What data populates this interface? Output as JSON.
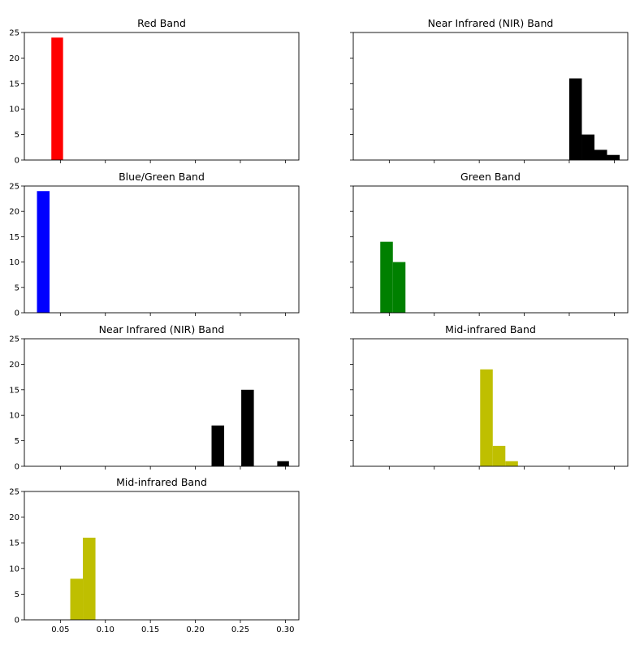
{
  "figure": {
    "shared_x": {
      "lim": [
        0.01,
        0.315
      ],
      "ticks": [
        0.05,
        0.1,
        0.15,
        0.2,
        0.25,
        0.3
      ],
      "tick_labels": [
        "0.05",
        "0.10",
        "0.15",
        "0.20",
        "0.25",
        "0.30"
      ]
    },
    "shared_y": {
      "lim": [
        0,
        25
      ],
      "ticks": [
        0,
        5,
        10,
        15,
        20,
        25
      ],
      "tick_labels": [
        "0",
        "5",
        "10",
        "15",
        "20",
        "25"
      ]
    }
  },
  "chart_data": [
    {
      "type": "bar",
      "title": "Red Band",
      "color": "#ff0000",
      "grid": false,
      "bins": [
        {
          "x0": 0.04,
          "x1": 0.053,
          "count": 24
        }
      ]
    },
    {
      "type": "bar",
      "title": "Near Infrared (NIR) Band",
      "color": "#000000",
      "grid": false,
      "bins": [
        {
          "x0": 0.25,
          "x1": 0.264,
          "count": 16
        },
        {
          "x0": 0.264,
          "x1": 0.278,
          "count": 5
        },
        {
          "x0": 0.278,
          "x1": 0.292,
          "count": 2
        },
        {
          "x0": 0.292,
          "x1": 0.306,
          "count": 1
        }
      ]
    },
    {
      "type": "bar",
      "title": "Blue/Green Band",
      "color": "#0000ff",
      "grid": false,
      "bins": [
        {
          "x0": 0.024,
          "x1": 0.038,
          "count": 24
        }
      ]
    },
    {
      "type": "bar",
      "title": "Green Band",
      "color": "#008000",
      "grid": false,
      "bins": [
        {
          "x0": 0.04,
          "x1": 0.054,
          "count": 14
        },
        {
          "x0": 0.054,
          "x1": 0.068,
          "count": 10
        }
      ]
    },
    {
      "type": "bar",
      "title": "Near Infrared (NIR) Band",
      "color": "#000000",
      "grid": false,
      "bins": [
        {
          "x0": 0.218,
          "x1": 0.232,
          "count": 8
        },
        {
          "x0": 0.251,
          "x1": 0.265,
          "count": 15
        },
        {
          "x0": 0.291,
          "x1": 0.304,
          "count": 1
        }
      ]
    },
    {
      "type": "bar",
      "title": "Mid-infrared Band",
      "color": "#bfbf00",
      "grid": false,
      "bins": [
        {
          "x0": 0.151,
          "x1": 0.165,
          "count": 19
        },
        {
          "x0": 0.165,
          "x1": 0.179,
          "count": 4
        },
        {
          "x0": 0.179,
          "x1": 0.193,
          "count": 1
        }
      ]
    },
    {
      "type": "bar",
      "title": "Mid-infrared Band",
      "color": "#bfbf00",
      "grid": false,
      "bins": [
        {
          "x0": 0.061,
          "x1": 0.075,
          "count": 8
        },
        {
          "x0": 0.075,
          "x1": 0.089,
          "count": 16
        }
      ]
    }
  ]
}
